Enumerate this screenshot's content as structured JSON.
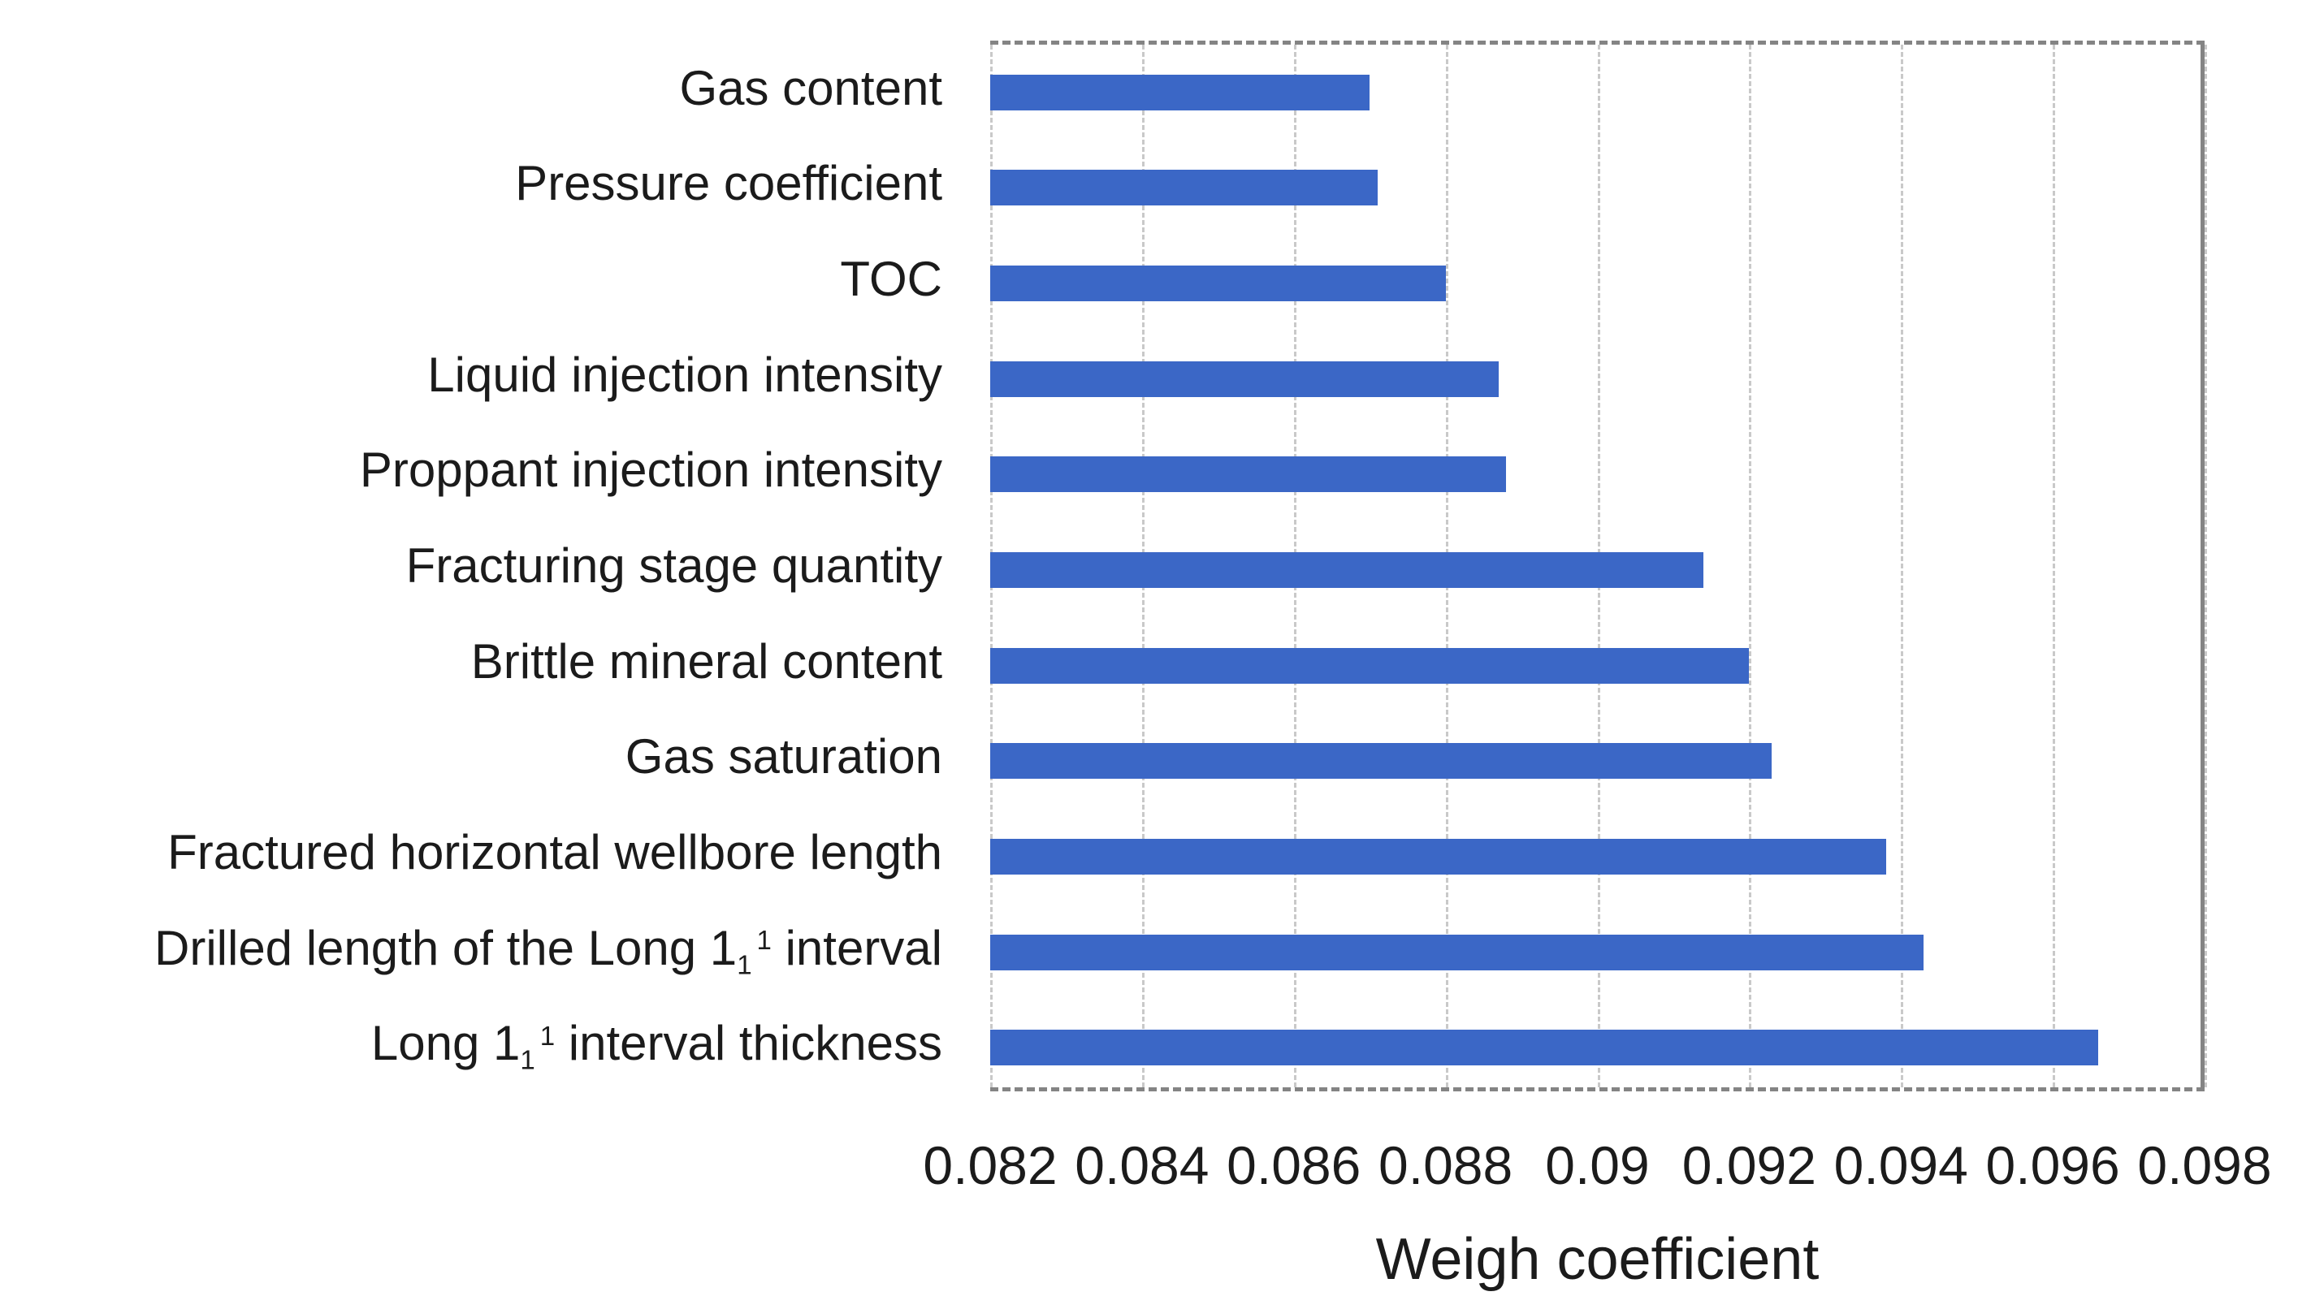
{
  "chart_data": {
    "type": "bar",
    "orientation": "horizontal",
    "xlabel": "Weigh coefficient",
    "ylabel": "",
    "xlim": [
      0.082,
      0.098
    ],
    "xtick_values": [
      0.082,
      0.084,
      0.086,
      0.088,
      0.09,
      0.092,
      0.094,
      0.096,
      0.098
    ],
    "xtick_labels": [
      "0.082",
      "0.084",
      "0.086",
      "0.088",
      "0.09",
      "0.092",
      "0.094",
      "0.096",
      "0.098"
    ],
    "grid": "vertical-dashed",
    "legend": "none",
    "bar_color": "#3b67c6",
    "categories": [
      "Gas content",
      "Pressure coefficient",
      "TOC",
      "Liquid injection intensity",
      "Proppant injection intensity",
      "Fracturing stage quantity",
      "Brittle mineral content",
      "Gas saturation",
      "Fractured horizontal wellbore length",
      "Drilled length of the Long 1₁¹ interval",
      "Long 1₁¹ interval thickness"
    ],
    "category_segments": [
      [
        {
          "t": "Gas content",
          "s": "n"
        }
      ],
      [
        {
          "t": "Pressure coefficient",
          "s": "n"
        }
      ],
      [
        {
          "t": "TOC",
          "s": "n"
        }
      ],
      [
        {
          "t": "Liquid injection intensity",
          "s": "n"
        }
      ],
      [
        {
          "t": "Proppant injection intensity",
          "s": "n"
        }
      ],
      [
        {
          "t": "Fracturing stage quantity",
          "s": "n"
        }
      ],
      [
        {
          "t": "Brittle mineral content",
          "s": "n"
        }
      ],
      [
        {
          "t": "Gas saturation",
          "s": "n"
        }
      ],
      [
        {
          "t": "Fractured horizontal wellbore length",
          "s": "n"
        }
      ],
      [
        {
          "t": "Drilled length of the Long 1",
          "s": "n"
        },
        {
          "t": "1",
          "s": "sub"
        },
        {
          "t": "1",
          "s": "sup"
        },
        {
          "t": " interval",
          "s": "n"
        }
      ],
      [
        {
          "t": "Long 1",
          "s": "n"
        },
        {
          "t": "1",
          "s": "sub"
        },
        {
          "t": "1",
          "s": "sup"
        },
        {
          "t": " interval thickness",
          "s": "n"
        }
      ]
    ],
    "values": [
      0.087,
      0.0871,
      0.088,
      0.0887,
      0.0888,
      0.0914,
      0.092,
      0.0923,
      0.0938,
      0.0943,
      0.0966
    ]
  }
}
